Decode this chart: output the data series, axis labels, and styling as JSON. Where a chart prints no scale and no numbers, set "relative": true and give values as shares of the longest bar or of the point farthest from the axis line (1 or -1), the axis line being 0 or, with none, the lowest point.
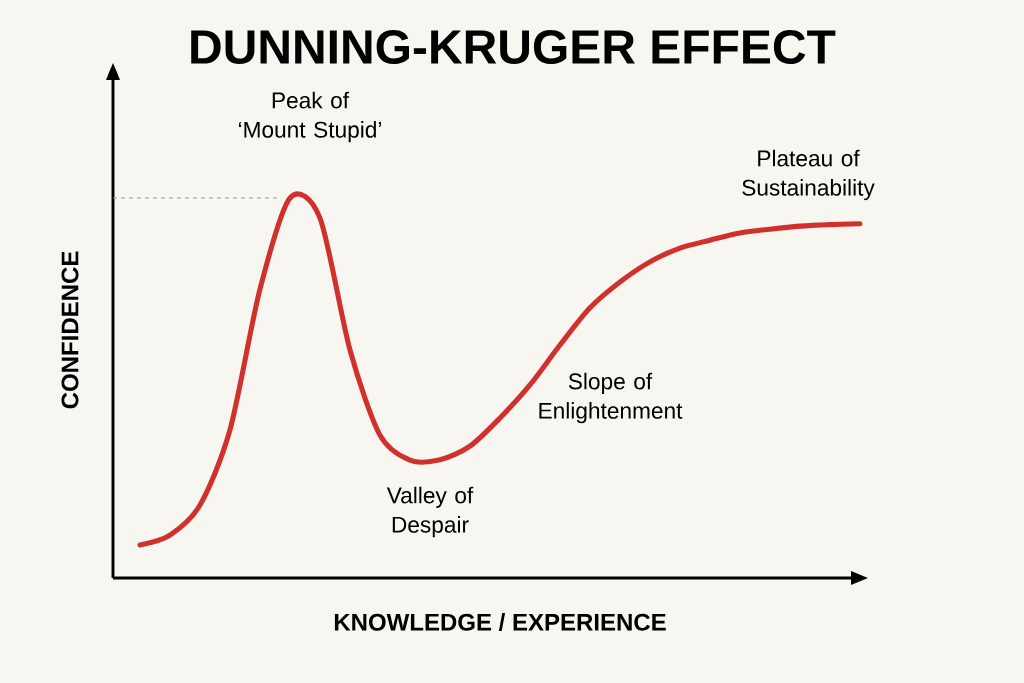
{
  "chart_data": {
    "type": "line",
    "title": "DUNNING-KRUGER EFFECT",
    "xlabel": "KNOWLEDGE / EXPERIENCE",
    "ylabel": "CONFIDENCE",
    "relative": true,
    "categories": [
      null,
      null,
      null,
      null,
      null,
      null,
      null,
      null,
      null,
      null,
      null,
      null,
      null,
      null,
      null,
      null,
      null,
      null,
      null,
      null,
      null,
      null,
      null,
      null,
      null
    ],
    "series": [
      {
        "color": "#d0312d",
        "values": [
          0.087,
          0.113,
          0.192,
          0.39,
          0.76,
          1,
          0.947,
          0.6,
          0.376,
          0.31,
          0.311,
          0.347,
          0.421,
          0.508,
          0.613,
          0.711,
          0.779,
          0.832,
          0.868,
          0.889,
          0.908,
          0.918,
          0.926,
          0.93,
          0.932
        ]
      }
    ],
    "ref_lines": [
      {
        "axis": "y",
        "value": 1,
        "color": "#999999",
        "line_style": "dashed"
      }
    ],
    "annotations": [
      "Peak of ‘Mount Stupid’",
      "Plateau of Sustainability",
      "Slope of Enlightenment",
      "Valley of Despair"
    ],
    "marker": "none",
    "line_style": "solid"
  }
}
